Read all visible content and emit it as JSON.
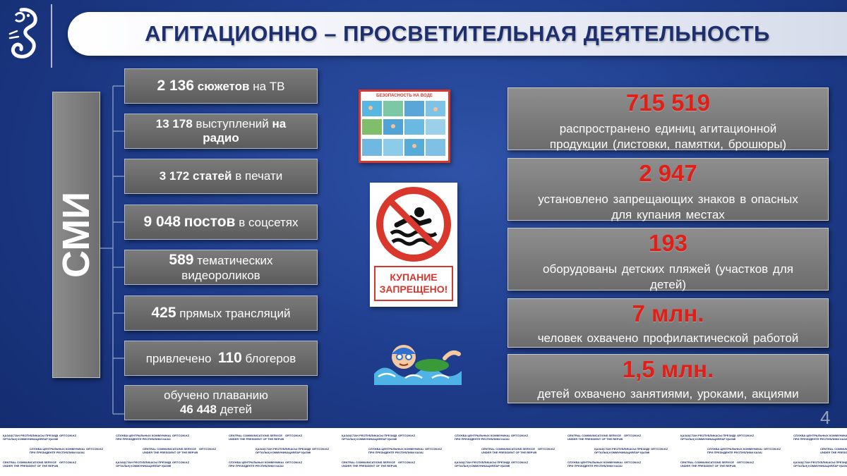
{
  "header": {
    "title": "АГИТАЦИОННО – ПРОСВЕТИТЕЛЬНАЯ ДЕЯТЕЛЬНОСТЬ"
  },
  "sidebar_label": "СМИ",
  "media_items": [
    {
      "lead": "",
      "number": "2 136",
      "middle": "сюжетов",
      "tail": "на ТВ"
    },
    {
      "line1": "13 178 выступлений на",
      "line2": "радио"
    },
    {
      "number": "3 172",
      "middle": "статей",
      "tail": "в печати"
    },
    {
      "number": "9 048",
      "middle": "постов",
      "tail": "в соцсетях"
    },
    {
      "number": "589",
      "line1_tail": "тематических",
      "line2": "видеороликов"
    },
    {
      "number": "425",
      "tail": "прямых трансляций"
    },
    {
      "lead": "привлечено",
      "number": "110",
      "tail": "блогеров"
    },
    {
      "line1": "обучено плаванию",
      "number": "46 448",
      "tail": "детей"
    }
  ],
  "poster": {
    "title": "БЕЗОПАСНОСТЬ НА ВОДЕ"
  },
  "sign": {
    "caption_line1": "КУПАНИЕ",
    "caption_line2": "ЗАПРЕЩЕНО!"
  },
  "stats": [
    {
      "number": "715 519",
      "desc_line1": "распространено единиц агитационной",
      "desc_line2": "продукции (листовки, памятки, брошюры)"
    },
    {
      "number": "2 947",
      "desc_line1": "установлено запрещающих знаков в опасных",
      "desc_line2": "для купания местах"
    },
    {
      "number": "193",
      "desc_line1": "оборудованы детских пляжей (участков для",
      "desc_line2": "детей)"
    },
    {
      "number": "7 млн.",
      "desc_line1": "человек охвачено профилактической работой"
    },
    {
      "number": "1,5 млн.",
      "desc_line1": "детей охвачено занятиями, уроками, акциями"
    }
  ],
  "page_number": "4",
  "footer": {
    "org_kz_1": "ҚАЗАҚСТАН РЕСПУБЛИКАСЫ ПРЕЗИДЕНТІ ЖАНЫНДАҒЫ",
    "org_kz_2": "ОРТАЛЫҚ КОММУНИКАЦИЯЛАР ҚЫЗМЕТІ",
    "org_ru_1": "СЛУЖБА ЦЕНТРАЛЬНЫХ КОММУНИКАЦИЙ",
    "org_ru_2": "ПРИ ПРЕЗИДЕНТЕ РЕСПУБЛИКИ КАЗАХСТАН",
    "org_en_1": "CENTRAL COMMUNICATIONS SERVICE",
    "org_en_2": "UNDER THE PRESIDENT OF THE REPUBLIC OF KAZAKHSTAN",
    "site": "ORTCOM.KZ"
  },
  "colors": {
    "accent_red": "#e21f17",
    "title_blue": "#1d2f6e",
    "background": "#1f3d8c"
  }
}
